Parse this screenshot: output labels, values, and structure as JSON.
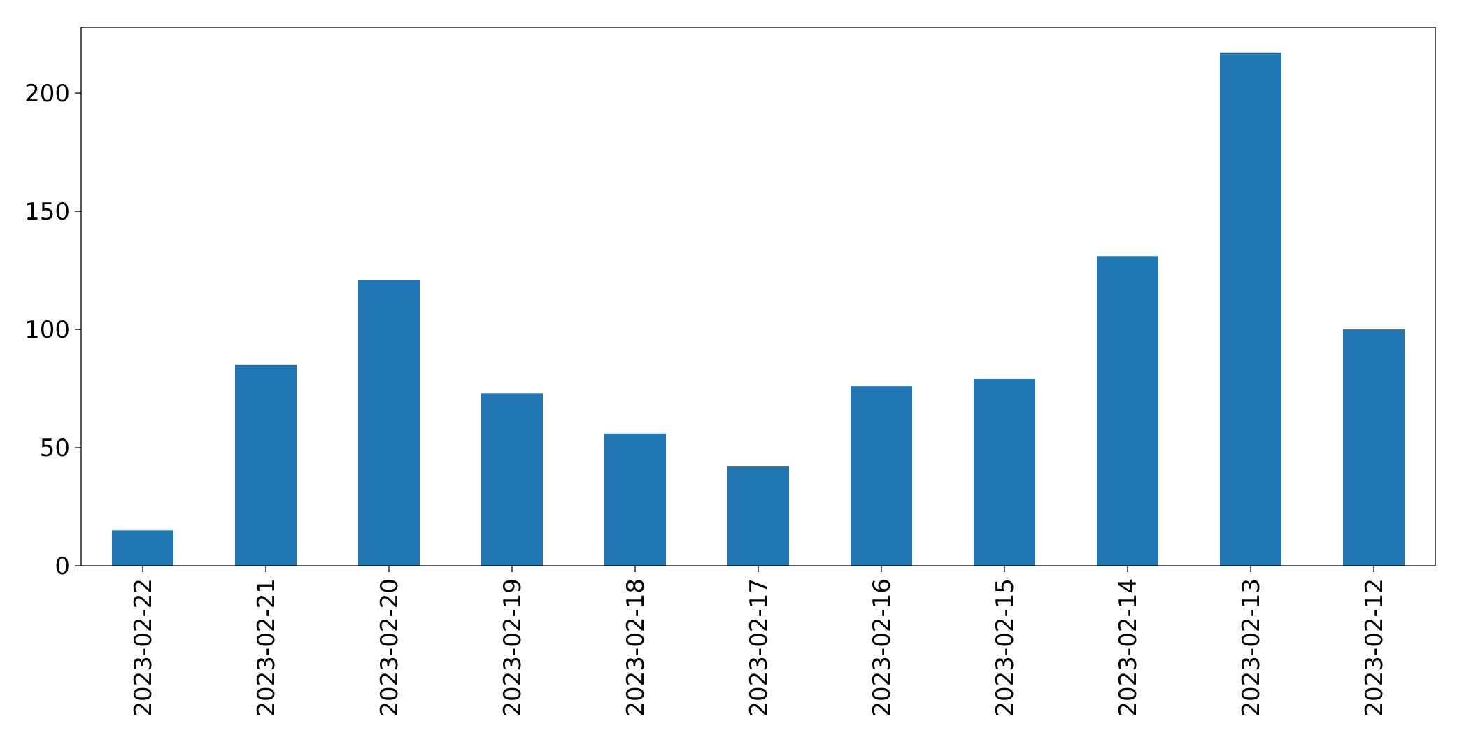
{
  "chart_data": {
    "type": "bar",
    "categories": [
      "2023-02-22",
      "2023-02-21",
      "2023-02-20",
      "2023-02-19",
      "2023-02-18",
      "2023-02-17",
      "2023-02-16",
      "2023-02-15",
      "2023-02-14",
      "2023-02-13",
      "2023-02-12"
    ],
    "values": [
      15,
      85,
      121,
      73,
      56,
      42,
      76,
      79,
      131,
      217,
      100
    ],
    "color": "#1f77b4",
    "ylim": [
      0,
      227.85
    ],
    "yticks": [
      0,
      50,
      100,
      150,
      200
    ],
    "grid": false
  }
}
